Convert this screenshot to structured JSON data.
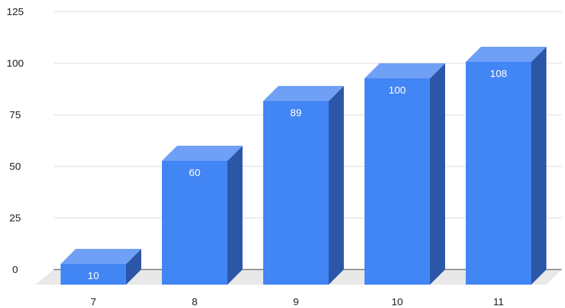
{
  "chart_data": {
    "type": "bar",
    "style": "3d",
    "categories": [
      "7",
      "8",
      "9",
      "10",
      "11"
    ],
    "values": [
      10,
      60,
      89,
      100,
      108
    ],
    "data_labels": [
      "10",
      "60",
      "89",
      "100",
      "108"
    ],
    "yticks": [
      "0",
      "25",
      "50",
      "75",
      "100",
      "125"
    ],
    "ylim": [
      0,
      125
    ],
    "grid": true,
    "legend": "none",
    "colors": {
      "bar_front": "#4285f4",
      "bar_top": "#6fa0f6",
      "bar_side": "#2c56a8",
      "floor": "#e8e8e8"
    }
  }
}
